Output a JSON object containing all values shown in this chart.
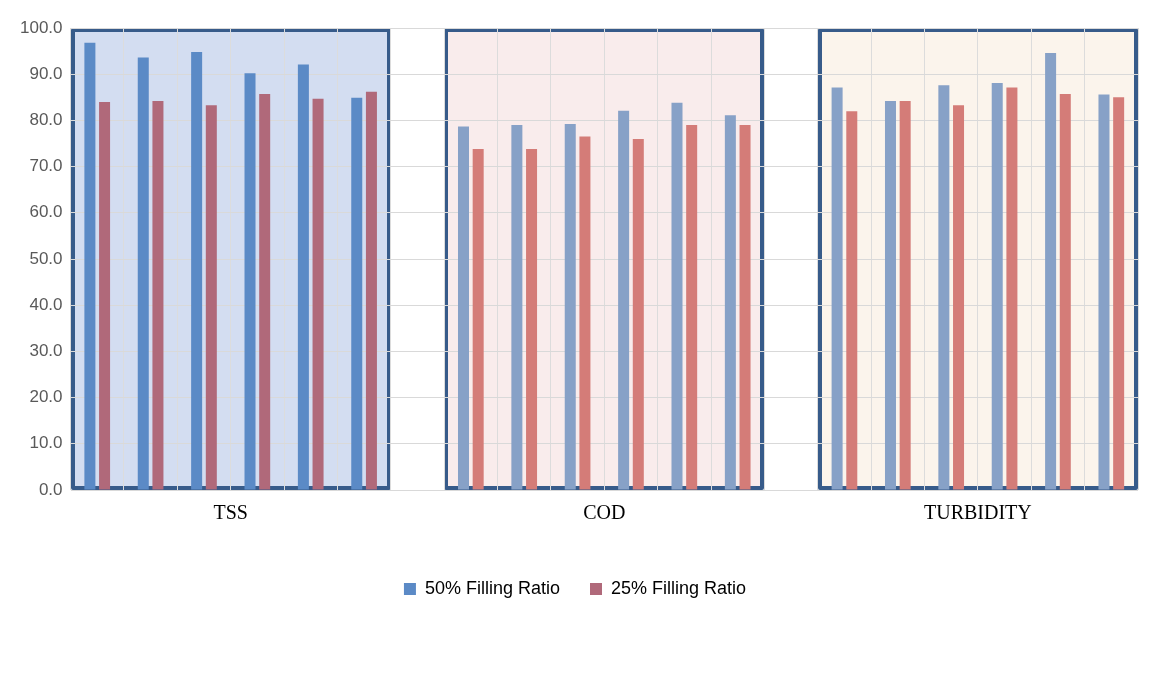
{
  "chart_data": {
    "type": "bar",
    "categories": [
      null,
      null,
      null,
      null,
      null,
      null,
      null,
      null,
      null,
      null,
      null,
      null,
      null,
      null,
      null,
      null,
      null,
      null,
      null,
      null
    ],
    "series": [
      {
        "name": "50% Filling Ratio",
        "color": "#5b8ac6",
        "values": [
          96.8,
          93.6,
          94.8,
          90.2,
          92.1,
          84.9,
          null,
          78.7,
          79.0,
          79.2,
          82.1,
          83.8,
          81.1,
          null,
          87.1,
          84.2,
          87.6,
          88.1,
          94.6,
          85.6
        ],
        "colors": [
          "#5b8ac6",
          "#5b8ac6",
          "#5b8ac6",
          "#5b8ac6",
          "#5b8ac6",
          "#5b8ac6",
          "#5b8ac6",
          "#87a1c7",
          "#87a1c7",
          "#87a1c7",
          "#87a1c7",
          "#87a1c7",
          "#87a1c7",
          "#87a1c7",
          "#87a1c7",
          "#87a1c7",
          "#87a1c7",
          "#87a1c7",
          "#87a1c7",
          "#87a1c7"
        ]
      },
      {
        "name": "25% Filling Ratio",
        "color": "#b0697a",
        "values": [
          84.0,
          84.2,
          83.3,
          85.7,
          84.7,
          86.2,
          null,
          73.8,
          73.8,
          76.5,
          76.0,
          79.0,
          79.0,
          null,
          82.0,
          84.2,
          83.3,
          87.1,
          85.7,
          85.0
        ],
        "colors": [
          "#b0697a",
          "#b0697a",
          "#b0697a",
          "#b0697a",
          "#b0697a",
          "#b0697a",
          "#b0697a",
          "#d47c78",
          "#d47c78",
          "#d47c78",
          "#d47c78",
          "#d47c78",
          "#d47c78",
          "#d47c78",
          "#d47c78",
          "#d47c78",
          "#d47c78",
          "#d47c78",
          "#d47c78",
          "#d47c78"
        ]
      }
    ],
    "annotations": [
      "TSS",
      "COD",
      "TURBIDITY"
    ],
    "ylim": [
      0,
      100
    ],
    "yticks": [
      {
        "value": 0,
        "label": "0.0"
      },
      {
        "value": 10,
        "label": "10.0"
      },
      {
        "value": 20,
        "label": "20.0"
      },
      {
        "value": 30,
        "label": "30.0"
      },
      {
        "value": 40,
        "label": "40.0"
      },
      {
        "value": 50,
        "label": "50.0"
      },
      {
        "value": 60,
        "label": "60.0"
      },
      {
        "value": 70,
        "label": "70.0"
      },
      {
        "value": 80,
        "label": "80.0"
      },
      {
        "value": 90,
        "label": "90.0"
      },
      {
        "value": 100,
        "label": "100.0"
      }
    ],
    "grid": true,
    "legend": "bottom"
  }
}
